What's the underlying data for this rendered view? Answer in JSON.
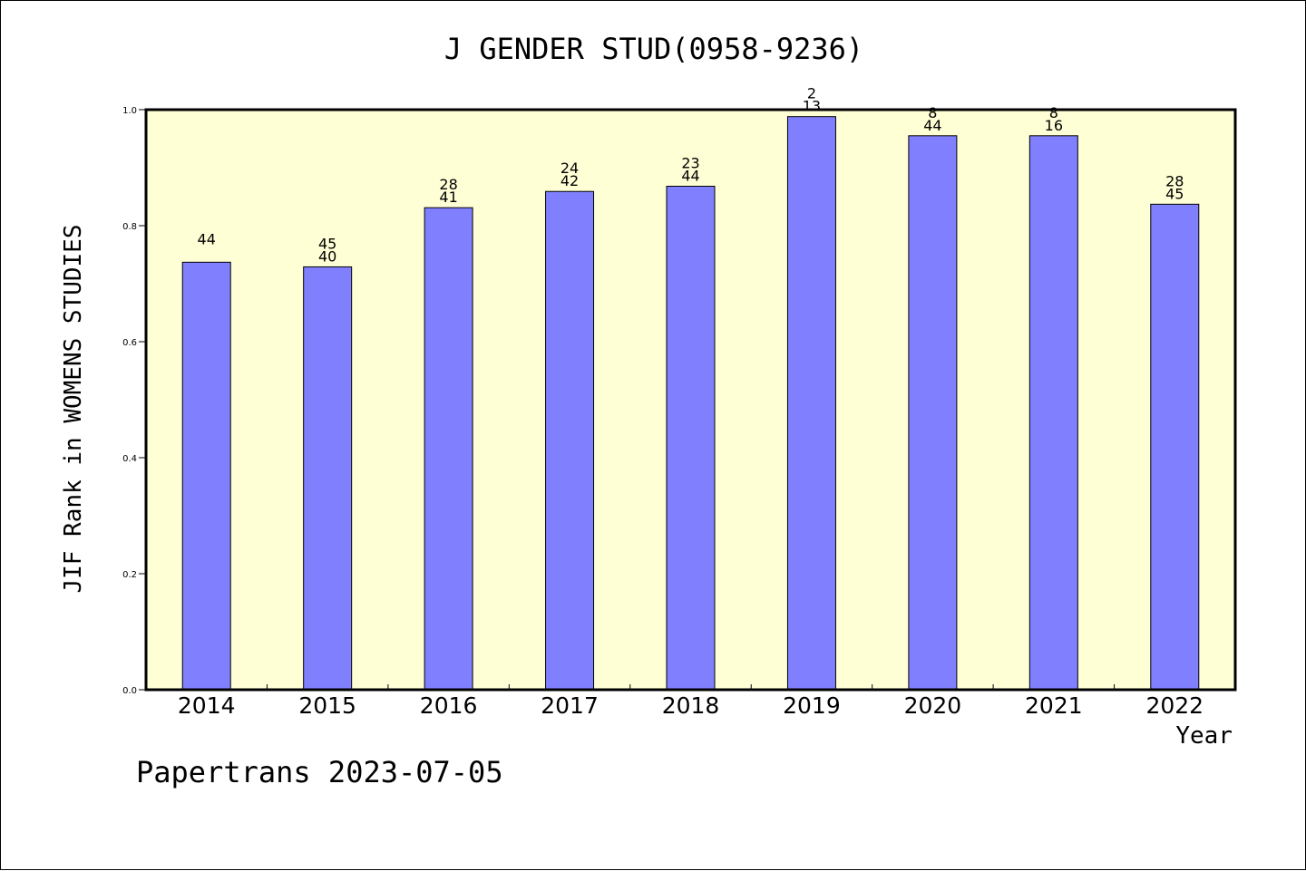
{
  "title": "J GENDER STUD(0958-9236)",
  "footer": "Papertrans 2023-07-05",
  "colors": {
    "plot_background": "#ffffd6",
    "bar_fill": "#8080ff",
    "bar_stroke": "#000000"
  },
  "chart_data": {
    "type": "bar",
    "title": "J GENDER STUD(0958-9236)",
    "xlabel": "Year",
    "ylabel": "JIF Rank in WOMENS STUDIES",
    "ylim": [
      0,
      1.0
    ],
    "yticks": [
      "0.0",
      "0.2",
      "0.4",
      "0.6",
      "0.8",
      "1.0"
    ],
    "grid": false,
    "categories": [
      "2014",
      "2015",
      "2016",
      "2017",
      "2018",
      "2019",
      "2020",
      "2021",
      "2022"
    ],
    "values": [
      0.737,
      0.729,
      0.831,
      0.859,
      0.868,
      0.988,
      0.955,
      0.955,
      0.837
    ],
    "annotations": [
      {
        "rank": "",
        "total": "44"
      },
      {
        "rank": "45",
        "total": "40"
      },
      {
        "rank": "28",
        "total": "41"
      },
      {
        "rank": "24",
        "total": "42"
      },
      {
        "rank": "23",
        "total": "44"
      },
      {
        "rank": "2",
        "total": "13"
      },
      {
        "rank": "8",
        "total": "44"
      },
      {
        "rank": "8",
        "total": "16"
      },
      {
        "rank": "28",
        "total": "45"
      }
    ]
  }
}
